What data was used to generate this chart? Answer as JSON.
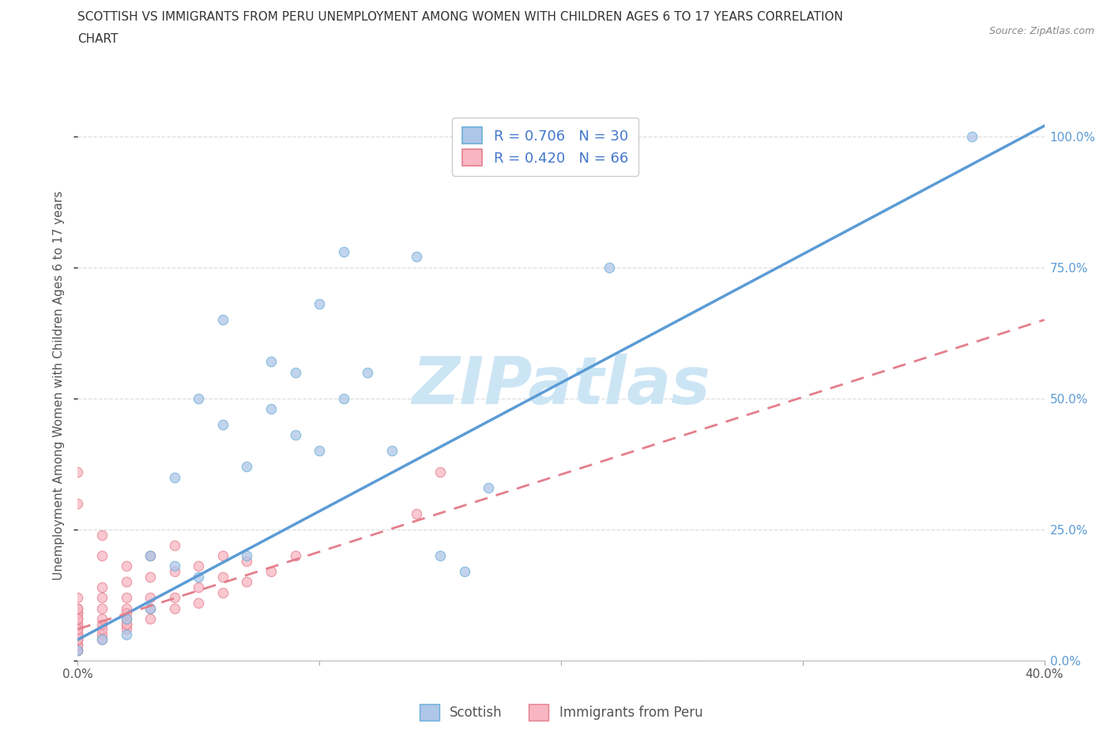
{
  "title_line1": "SCOTTISH VS IMMIGRANTS FROM PERU UNEMPLOYMENT AMONG WOMEN WITH CHILDREN AGES 6 TO 17 YEARS CORRELATION",
  "title_line2": "CHART",
  "source_text": "Source: ZipAtlas.com",
  "ylabel": "Unemployment Among Women with Children Ages 6 to 17 years",
  "xlim": [
    0.0,
    0.4
  ],
  "ylim": [
    0.0,
    1.05
  ],
  "yticks": [
    0.0,
    0.25,
    0.5,
    0.75,
    1.0
  ],
  "ytick_labels": [
    "0.0%",
    "25.0%",
    "50.0%",
    "75.0%",
    "100.0%"
  ],
  "xticks": [
    0.0,
    0.1,
    0.2,
    0.3,
    0.4
  ],
  "xtick_labels": [
    "0.0%",
    "",
    "",
    "",
    "40.0%"
  ],
  "scottish_color": "#aec6e8",
  "scottish_edge": "#6aaed6",
  "peru_color": "#f7b6c2",
  "peru_edge": "#e47e8c",
  "scatter_alpha": 0.75,
  "scatter_size": 80,
  "watermark": "ZIPatlas",
  "watermark_color": "#cce5f5",
  "r_scottish": 0.706,
  "n_scottish": 30,
  "r_peru": 0.42,
  "n_peru": 66,
  "scottish_label": "Scottish",
  "peru_label": "Immigrants from Peru",
  "trend_color_scottish": "#5b9bd5",
  "trend_color_peru": "#e47e8c",
  "scottish_x": [
    0.0,
    0.01,
    0.02,
    0.02,
    0.03,
    0.03,
    0.04,
    0.04,
    0.05,
    0.05,
    0.06,
    0.06,
    0.07,
    0.07,
    0.08,
    0.08,
    0.09,
    0.09,
    0.1,
    0.1,
    0.11,
    0.11,
    0.12,
    0.13,
    0.14,
    0.15,
    0.16,
    0.17,
    0.22,
    0.37
  ],
  "scottish_y": [
    0.02,
    0.04,
    0.05,
    0.08,
    0.1,
    0.2,
    0.18,
    0.35,
    0.16,
    0.5,
    0.45,
    0.65,
    0.2,
    0.37,
    0.48,
    0.57,
    0.43,
    0.55,
    0.4,
    0.68,
    0.5,
    0.78,
    0.55,
    0.4,
    0.77,
    0.2,
    0.17,
    0.33,
    0.75,
    1.0
  ],
  "peru_x": [
    0.0,
    0.0,
    0.0,
    0.0,
    0.0,
    0.0,
    0.0,
    0.0,
    0.0,
    0.0,
    0.0,
    0.0,
    0.0,
    0.0,
    0.0,
    0.0,
    0.0,
    0.0,
    0.0,
    0.0,
    0.0,
    0.0,
    0.0,
    0.0,
    0.0,
    0.0,
    0.01,
    0.01,
    0.01,
    0.01,
    0.01,
    0.01,
    0.01,
    0.01,
    0.01,
    0.01,
    0.02,
    0.02,
    0.02,
    0.02,
    0.02,
    0.02,
    0.02,
    0.02,
    0.02,
    0.03,
    0.03,
    0.03,
    0.03,
    0.03,
    0.04,
    0.04,
    0.04,
    0.04,
    0.05,
    0.05,
    0.05,
    0.06,
    0.06,
    0.06,
    0.07,
    0.07,
    0.08,
    0.09,
    0.14,
    0.15
  ],
  "peru_y": [
    0.02,
    0.02,
    0.03,
    0.03,
    0.04,
    0.04,
    0.04,
    0.05,
    0.05,
    0.06,
    0.06,
    0.07,
    0.07,
    0.08,
    0.08,
    0.09,
    0.09,
    0.1,
    0.1,
    0.12,
    0.3,
    0.36,
    0.04,
    0.05,
    0.06,
    0.08,
    0.05,
    0.06,
    0.07,
    0.08,
    0.1,
    0.12,
    0.14,
    0.2,
    0.24,
    0.04,
    0.06,
    0.07,
    0.08,
    0.1,
    0.12,
    0.15,
    0.18,
    0.07,
    0.09,
    0.08,
    0.1,
    0.12,
    0.16,
    0.2,
    0.1,
    0.12,
    0.17,
    0.22,
    0.11,
    0.14,
    0.18,
    0.13,
    0.16,
    0.2,
    0.15,
    0.19,
    0.17,
    0.2,
    0.28,
    0.36
  ],
  "scottish_trendline_x": [
    0.0,
    0.4
  ],
  "scottish_trendline_y": [
    0.04,
    1.02
  ],
  "peru_trendline_x": [
    0.0,
    0.4
  ],
  "peru_trendline_y": [
    0.06,
    0.65
  ]
}
